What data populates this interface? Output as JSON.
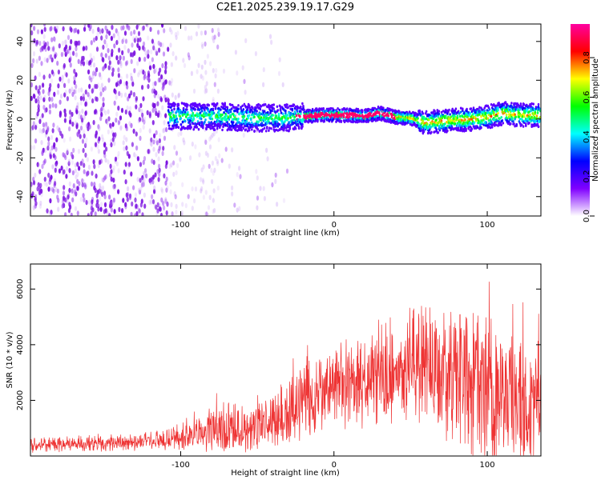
{
  "title": "C2E1.2025.239.19.17.G29",
  "chart_data": [
    {
      "type": "heatmap",
      "xlabel": "Height of straight line (km)",
      "ylabel": "Frequency (Hz)",
      "xlim": [
        -198,
        135
      ],
      "ylim": [
        -50,
        49
      ],
      "xticks": [
        -100,
        0,
        100
      ],
      "xtick_labels": [
        "-100",
        "0",
        "100"
      ],
      "yticks": [
        -40,
        -20,
        0,
        20,
        40
      ],
      "ytick_labels": [
        "-40",
        "-20",
        "0",
        "20",
        "40"
      ],
      "colorbar": {
        "label": "Normalized spectral amplitude",
        "range": [
          0,
          0.97
        ],
        "ticks": [
          0,
          0.2,
          0.4,
          0.6,
          0.8
        ],
        "tick_labels": [
          "0.0",
          "0.2",
          "0.4",
          "0.6",
          "0.8"
        ],
        "colors": [
          "#ffffff",
          "#8000ff",
          "#0000ff",
          "#00ffff",
          "#00ff00",
          "#ffff00",
          "#ff0000",
          "#ff00a0"
        ]
      },
      "ridge": {
        "x": [
          -108,
          -90,
          -70,
          -50,
          -30,
          -10,
          0,
          10,
          20,
          30,
          40,
          50,
          60,
          70,
          80,
          90,
          100,
          110,
          120,
          135
        ],
        "frequency": [
          1.5,
          1.5,
          1.2,
          0.5,
          0.5,
          2,
          2,
          2,
          1.5,
          3,
          1,
          0.5,
          -2,
          -1,
          -0.5,
          0,
          1,
          3,
          2,
          2
        ]
      }
    },
    {
      "type": "line",
      "color": "#ee3333",
      "xlabel": "Height of straight line (km)",
      "ylabel": "SNR (10 * v/v)",
      "xlim": [
        -198,
        135
      ],
      "ylim": [
        0,
        6900
      ],
      "xticks": [
        -100,
        0,
        100
      ],
      "xtick_labels": [
        "-100",
        "0",
        "100"
      ],
      "yticks": [
        2000,
        4000,
        6000
      ],
      "ytick_labels": [
        "2000",
        "4000",
        "6000"
      ],
      "envelope": {
        "x": [
          -198,
          -160,
          -120,
          -100,
          -90,
          -80,
          -70,
          -60,
          -50,
          -40,
          -30,
          -20,
          -10,
          0,
          10,
          20,
          30,
          40,
          50,
          60,
          70,
          80,
          90,
          100,
          110,
          120,
          135
        ],
        "mean_snr": [
          400,
          450,
          500,
          650,
          800,
          1000,
          1100,
          900,
          1000,
          1200,
          1600,
          2100,
          2300,
          2600,
          2700,
          2400,
          2900,
          3100,
          3200,
          3100,
          3000,
          2800,
          2500,
          2400,
          2200,
          2000,
          1900
        ],
        "peak_snr": [
          700,
          800,
          900,
          1200,
          1700,
          2200,
          2900,
          2000,
          2200,
          2400,
          3500,
          4300,
          4100,
          4200,
          4600,
          4300,
          5000,
          5800,
          5700,
          6850,
          6000,
          6400,
          6200,
          6750,
          5600,
          6300,
          5400
        ]
      }
    }
  ]
}
